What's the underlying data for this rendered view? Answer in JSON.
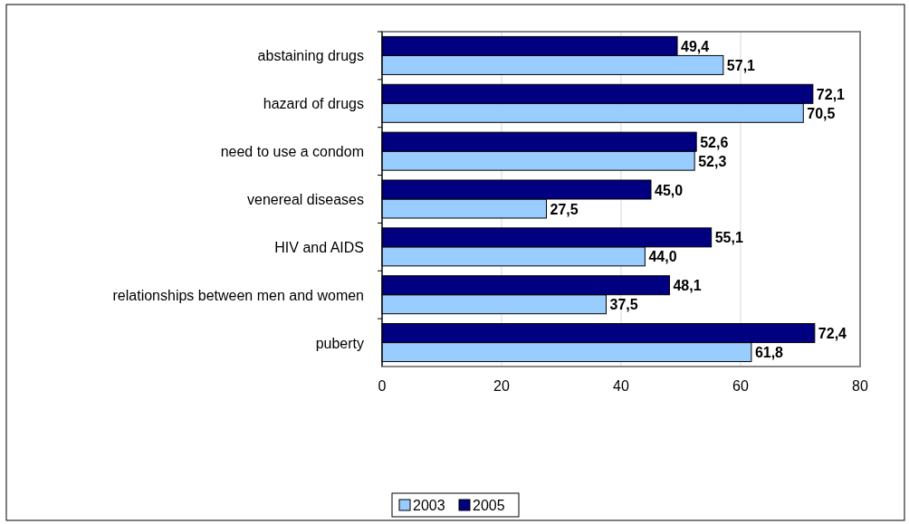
{
  "chart_data": {
    "type": "bar",
    "orientation": "horizontal",
    "categories": [
      "abstaining drugs",
      "hazard of drugs",
      "need to use a condom",
      "venereal diseases",
      "HIV and AIDS",
      "relationships between men and women",
      "puberty"
    ],
    "series": [
      {
        "name": "2003",
        "color": "#99ccff",
        "values": [
          57.1,
          70.5,
          52.3,
          27.5,
          44.0,
          37.5,
          61.8
        ],
        "value_labels": [
          "57,1",
          "70,5",
          "52,3",
          "27,5",
          "44,0",
          "37,5",
          "61,8"
        ]
      },
      {
        "name": "2005",
        "color": "#000080",
        "values": [
          49.4,
          72.1,
          52.6,
          45.0,
          55.1,
          48.1,
          72.4
        ],
        "value_labels": [
          "49,4",
          "72,1",
          "52,6",
          "45,0",
          "55,1",
          "48,1",
          "72,4"
        ]
      }
    ],
    "xlim": [
      0,
      80
    ],
    "xticks": [
      0,
      20,
      40,
      60,
      80
    ],
    "grid": "x",
    "legend": "bottom"
  }
}
